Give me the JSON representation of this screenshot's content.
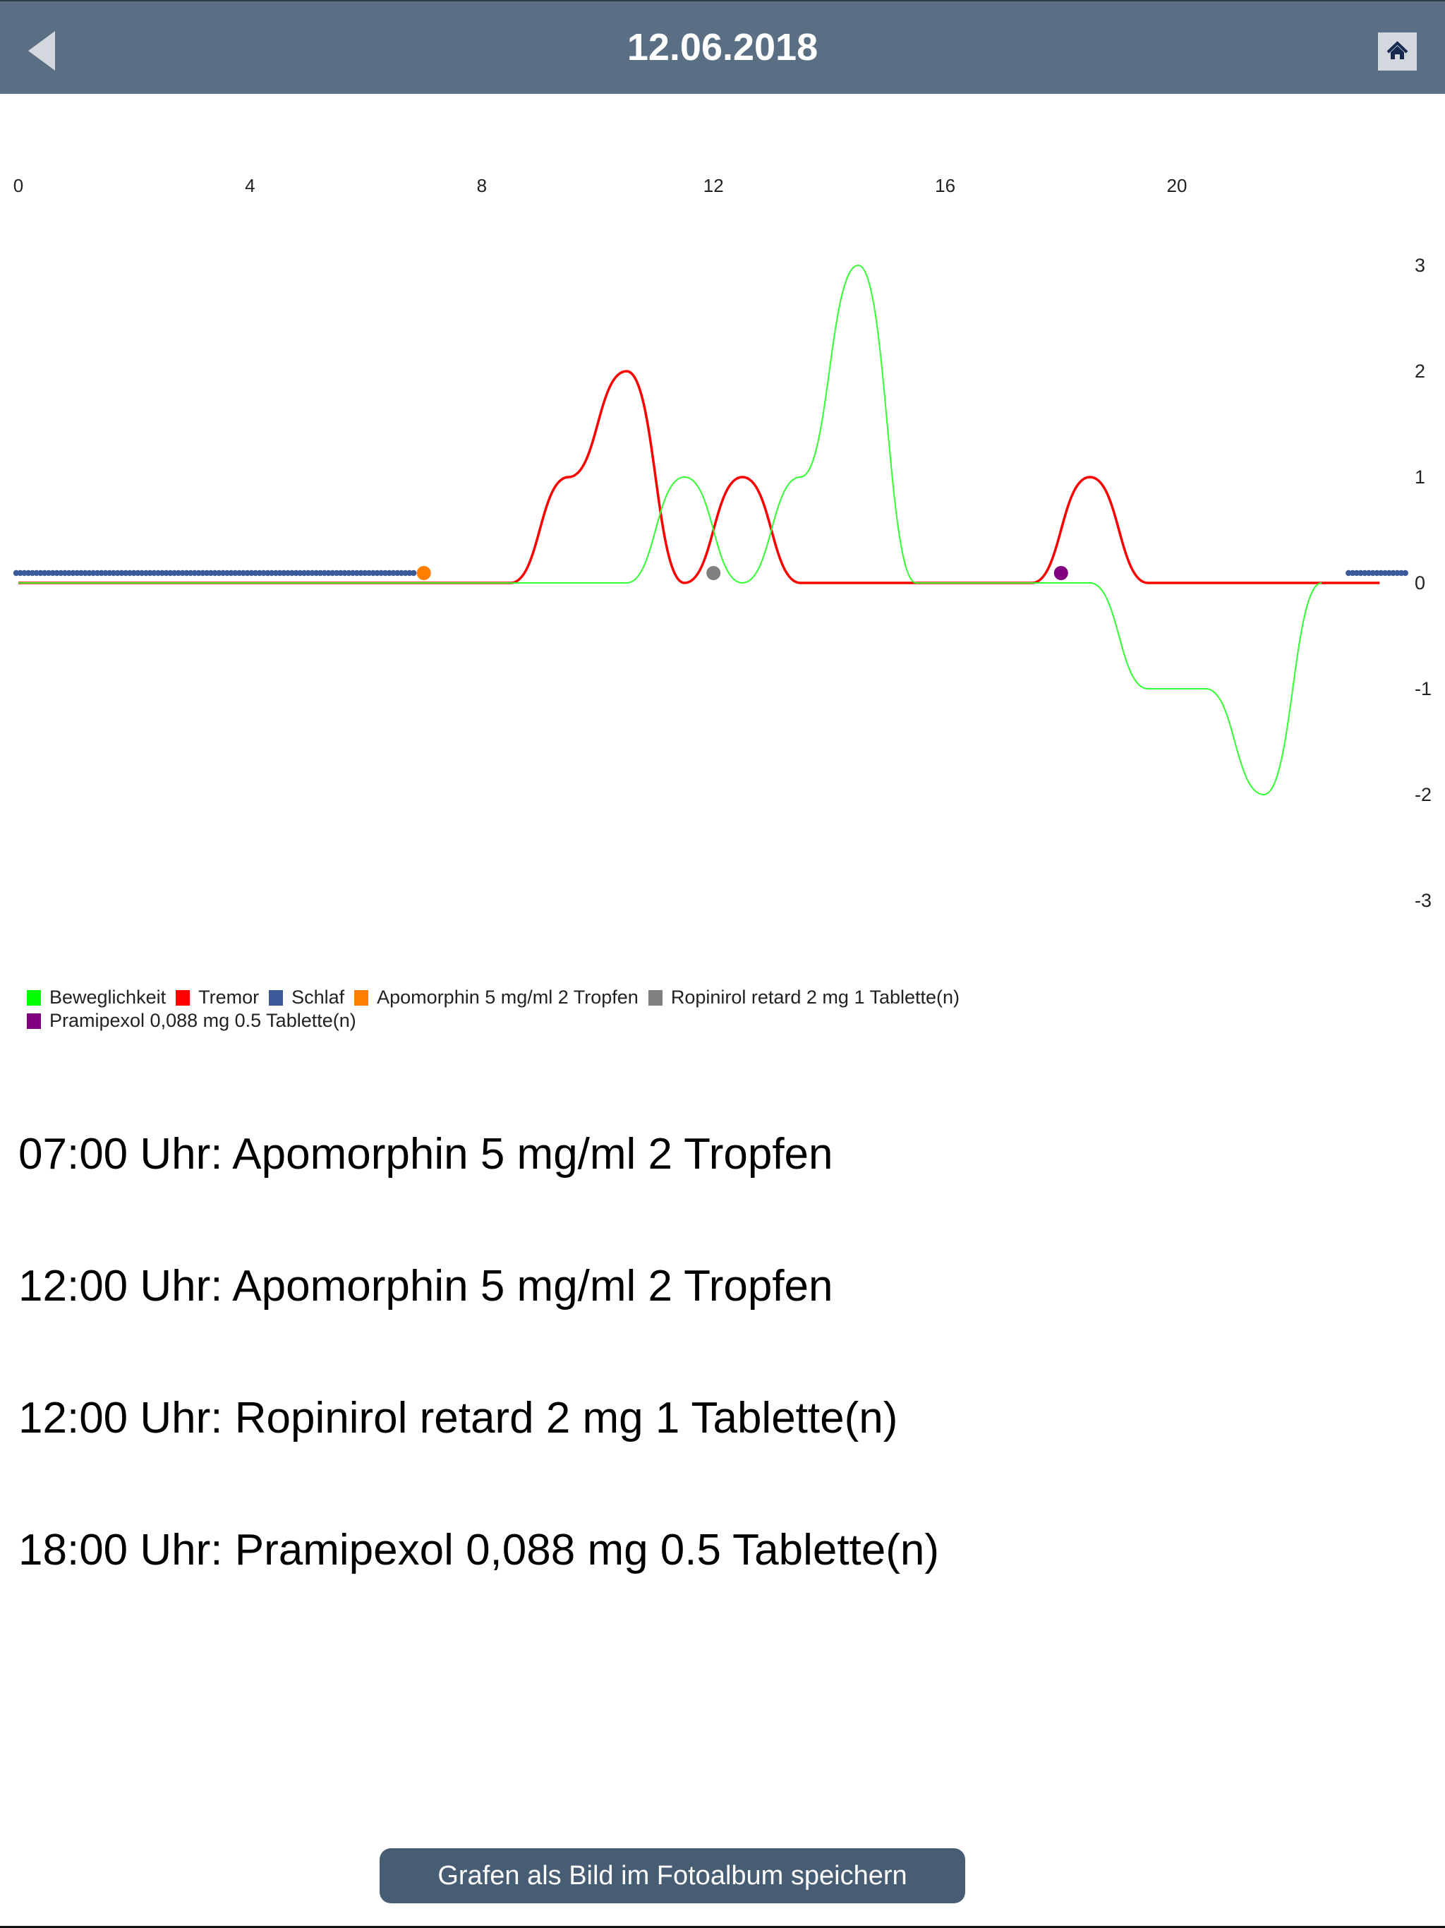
{
  "header": {
    "title": "12.06.2018",
    "back_icon": "back-triangle-icon",
    "home_icon": "home-icon",
    "bg_color": "#5a6e84"
  },
  "legend": [
    {
      "label": "Beweglichkeit",
      "color": "#00ff00"
    },
    {
      "label": "Tremor",
      "color": "#ff0000"
    },
    {
      "label": "Schlaf",
      "color": "#3a5a9a"
    },
    {
      "label": "Apomorphin 5 mg/ml 2 Tropfen",
      "color": "#ff8000"
    },
    {
      "label": "Ropinirol retard 2 mg 1 Tablette(n)",
      "color": "#808080"
    },
    {
      "label": "Pramipexol 0,088 mg 0.5 Tablette(n)",
      "color": "#800080"
    }
  ],
  "medications": [
    "07:00 Uhr: Apomorphin 5 mg/ml 2 Tropfen",
    "12:00 Uhr: Apomorphin 5 mg/ml 2 Tropfen",
    "12:00 Uhr: Ropinirol retard 2 mg 1 Tablette(n)",
    "18:00 Uhr: Pramipexol 0,088 mg 0.5 Tablette(n)"
  ],
  "save_button": {
    "label": "Grafen  als Bild im Fotoalbum speichern"
  },
  "chart_data": {
    "type": "line",
    "title": "12.06.2018",
    "xlabel": "",
    "ylabel": "",
    "x_ticks": [
      "0",
      "4",
      "8",
      "12",
      "16",
      "20"
    ],
    "y_ticks": [
      "3",
      "2",
      "1",
      "0",
      "-1",
      "-2",
      "-3"
    ],
    "xlim": [
      0,
      24
    ],
    "ylim": [
      -3,
      3
    ],
    "grid": false,
    "legend_position": "bottom",
    "series": [
      {
        "name": "Beweglichkeit",
        "color": "#00ff00",
        "x": [
          0,
          0.5,
          1.5,
          2.5,
          3.5,
          4.5,
          5.5,
          6.5,
          7.5,
          8.5,
          9.5,
          10.5,
          11.5,
          12.5,
          13.5,
          14.5,
          15.5,
          16.5,
          17.5,
          18.5,
          19.5,
          20.5,
          21.5,
          22.5
        ],
        "values": [
          0,
          0,
          0,
          0,
          0,
          0,
          0,
          0,
          0,
          0,
          0,
          0,
          1,
          0,
          1,
          3,
          0,
          0,
          0,
          0,
          -1,
          -1,
          -2,
          0
        ]
      },
      {
        "name": "Tremor",
        "color": "#ff0000",
        "x": [
          0,
          0.5,
          1.5,
          2.5,
          3.5,
          4.5,
          5.5,
          6.5,
          7.5,
          8.5,
          9.5,
          10.5,
          11.5,
          12.5,
          13.5,
          14.5,
          15.5,
          16.5,
          17.5,
          18.5,
          19.5,
          20.5,
          21.5,
          22.5,
          23.5
        ],
        "values": [
          0,
          0,
          0,
          0,
          0,
          0,
          0,
          0,
          0,
          0,
          1,
          2,
          0,
          1,
          0,
          0,
          0,
          0,
          0,
          1,
          0,
          0,
          0,
          0,
          0
        ]
      },
      {
        "name": "Schlaf",
        "color": "#3a5a9a",
        "type": "dots",
        "intervals": [
          [
            0,
            6.9
          ],
          [
            23,
            24
          ]
        ],
        "y": 0.1
      }
    ],
    "events": [
      {
        "name": "Apomorphin 5 mg/ml 2 Tropfen",
        "x": 7,
        "color": "#ff8000"
      },
      {
        "name": "Apomorphin 5 mg/ml 2 Tropfen",
        "x": 12,
        "color": "#ff8000"
      },
      {
        "name": "Ropinirol retard 2 mg 1 Tablette(n)",
        "x": 12,
        "color": "#808080"
      },
      {
        "name": "Pramipexol 0,088 mg 0.5 Tablette(n)",
        "x": 18,
        "color": "#800080"
      }
    ]
  }
}
